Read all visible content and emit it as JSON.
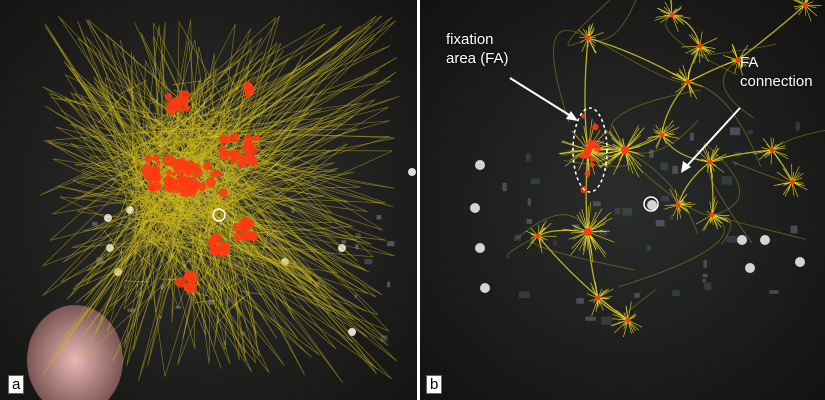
{
  "panels": [
    {
      "label": "a"
    },
    {
      "label": "b"
    }
  ],
  "annotations": {
    "fixation_area": "fixation\narea (FA)",
    "fa_connection": "FA\nconnection"
  },
  "colors": {
    "background": "#1b1b18",
    "fixation": "#ff3a12",
    "trajectory": "#c8b41e",
    "glow": "#f0e020"
  }
}
